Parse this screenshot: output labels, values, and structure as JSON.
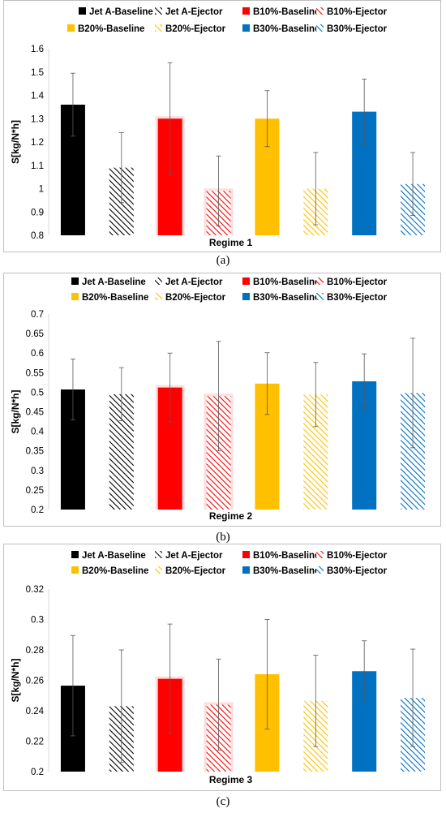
{
  "colors": {
    "jeta": "#000000",
    "b10": "#ff0000",
    "b20": "#ffc000",
    "b30": "#0070c0",
    "glow": "#ffdddd",
    "error_bar": "#595959"
  },
  "legend": [
    {
      "label": "Jet A-Baseline",
      "color": "#000000",
      "hatched": false
    },
    {
      "label": "Jet A-Ejector",
      "color": "#000000",
      "hatched": true
    },
    {
      "label": "B10%-Baseline",
      "color": "#ff0000",
      "hatched": false
    },
    {
      "label": "B10%-Ejector",
      "color": "#ff0000",
      "hatched": true
    },
    {
      "label": "B20%-Baseline",
      "color": "#ffc000",
      "hatched": false
    },
    {
      "label": "B20%-Ejector",
      "color": "#ffc000",
      "hatched": true
    },
    {
      "label": "B30%-Baseline",
      "color": "#0070c0",
      "hatched": false
    },
    {
      "label": "B30%-Ejector",
      "color": "#0070c0",
      "hatched": true
    }
  ],
  "chart_data": [
    {
      "type": "bar",
      "panel_caption": "(a)",
      "xlabel": "Regime 1",
      "ylabel": "S[kg/N*h]",
      "ylim": [
        0.8,
        1.6
      ],
      "yticks": [
        "0.8",
        "0.9",
        "1",
        "1.1",
        "1.2",
        "1.3",
        "1.4",
        "1.5",
        "1.6"
      ],
      "grid": false,
      "legend_position": "top",
      "series": [
        {
          "name": "Jet A-Baseline",
          "value": 1.36,
          "error": 0.135
        },
        {
          "name": "Jet A-Ejector",
          "value": 1.09,
          "error": 0.15
        },
        {
          "name": "B10%-Baseline",
          "value": 1.3,
          "error": 0.24
        },
        {
          "name": "B10%-Ejector",
          "value": 0.99,
          "error": 0.15
        },
        {
          "name": "B20%-Baseline",
          "value": 1.3,
          "error": 0.12
        },
        {
          "name": "B20%-Ejector",
          "value": 1.0,
          "error": 0.155
        },
        {
          "name": "B30%-Baseline",
          "value": 1.33,
          "error": 0.14
        },
        {
          "name": "B30%-Ejector",
          "value": 1.02,
          "error": 0.135
        }
      ]
    },
    {
      "type": "bar",
      "panel_caption": "(b)",
      "xlabel": "Regime 2",
      "ylabel": "S[kg/N*h]",
      "ylim": [
        0.2,
        0.7
      ],
      "yticks": [
        "0.2",
        "0.25",
        "0.3",
        "0.35",
        "0.4",
        "0.45",
        "0.5",
        "0.55",
        "0.6",
        "0.65",
        "0.7"
      ],
      "grid": false,
      "legend_position": "top",
      "series": [
        {
          "name": "Jet A-Baseline",
          "value": 0.507,
          "error": 0.078
        },
        {
          "name": "Jet A-Ejector",
          "value": 0.495,
          "error": 0.068
        },
        {
          "name": "B10%-Baseline",
          "value": 0.512,
          "error": 0.088
        },
        {
          "name": "B10%-Ejector",
          "value": 0.49,
          "error": 0.14
        },
        {
          "name": "B20%-Baseline",
          "value": 0.522,
          "error": 0.079
        },
        {
          "name": "B20%-Ejector",
          "value": 0.494,
          "error": 0.082
        },
        {
          "name": "B30%-Baseline",
          "value": 0.528,
          "error": 0.07
        },
        {
          "name": "B30%-Ejector",
          "value": 0.498,
          "error": 0.14
        }
      ]
    },
    {
      "type": "bar",
      "panel_caption": "(c)",
      "xlabel": "Regime 3",
      "ylabel": "S[kg/N*h]",
      "ylim": [
        0.2,
        0.32
      ],
      "yticks": [
        "0.2",
        "0.22",
        "0.24",
        "0.26",
        "0.28",
        "0.3",
        "0.32"
      ],
      "grid": false,
      "legend_position": "top",
      "series": [
        {
          "name": "Jet A-Baseline",
          "value": 0.2565,
          "error": 0.033
        },
        {
          "name": "Jet A-Ejector",
          "value": 0.243,
          "error": 0.037
        },
        {
          "name": "B10%-Baseline",
          "value": 0.261,
          "error": 0.036
        },
        {
          "name": "B10%-Ejector",
          "value": 0.244,
          "error": 0.03
        },
        {
          "name": "B20%-Baseline",
          "value": 0.264,
          "error": 0.036
        },
        {
          "name": "B20%-Ejector",
          "value": 0.2465,
          "error": 0.03
        },
        {
          "name": "B30%-Baseline",
          "value": 0.266,
          "error": 0.02
        },
        {
          "name": "B30%-Ejector",
          "value": 0.2485,
          "error": 0.032
        }
      ]
    }
  ]
}
